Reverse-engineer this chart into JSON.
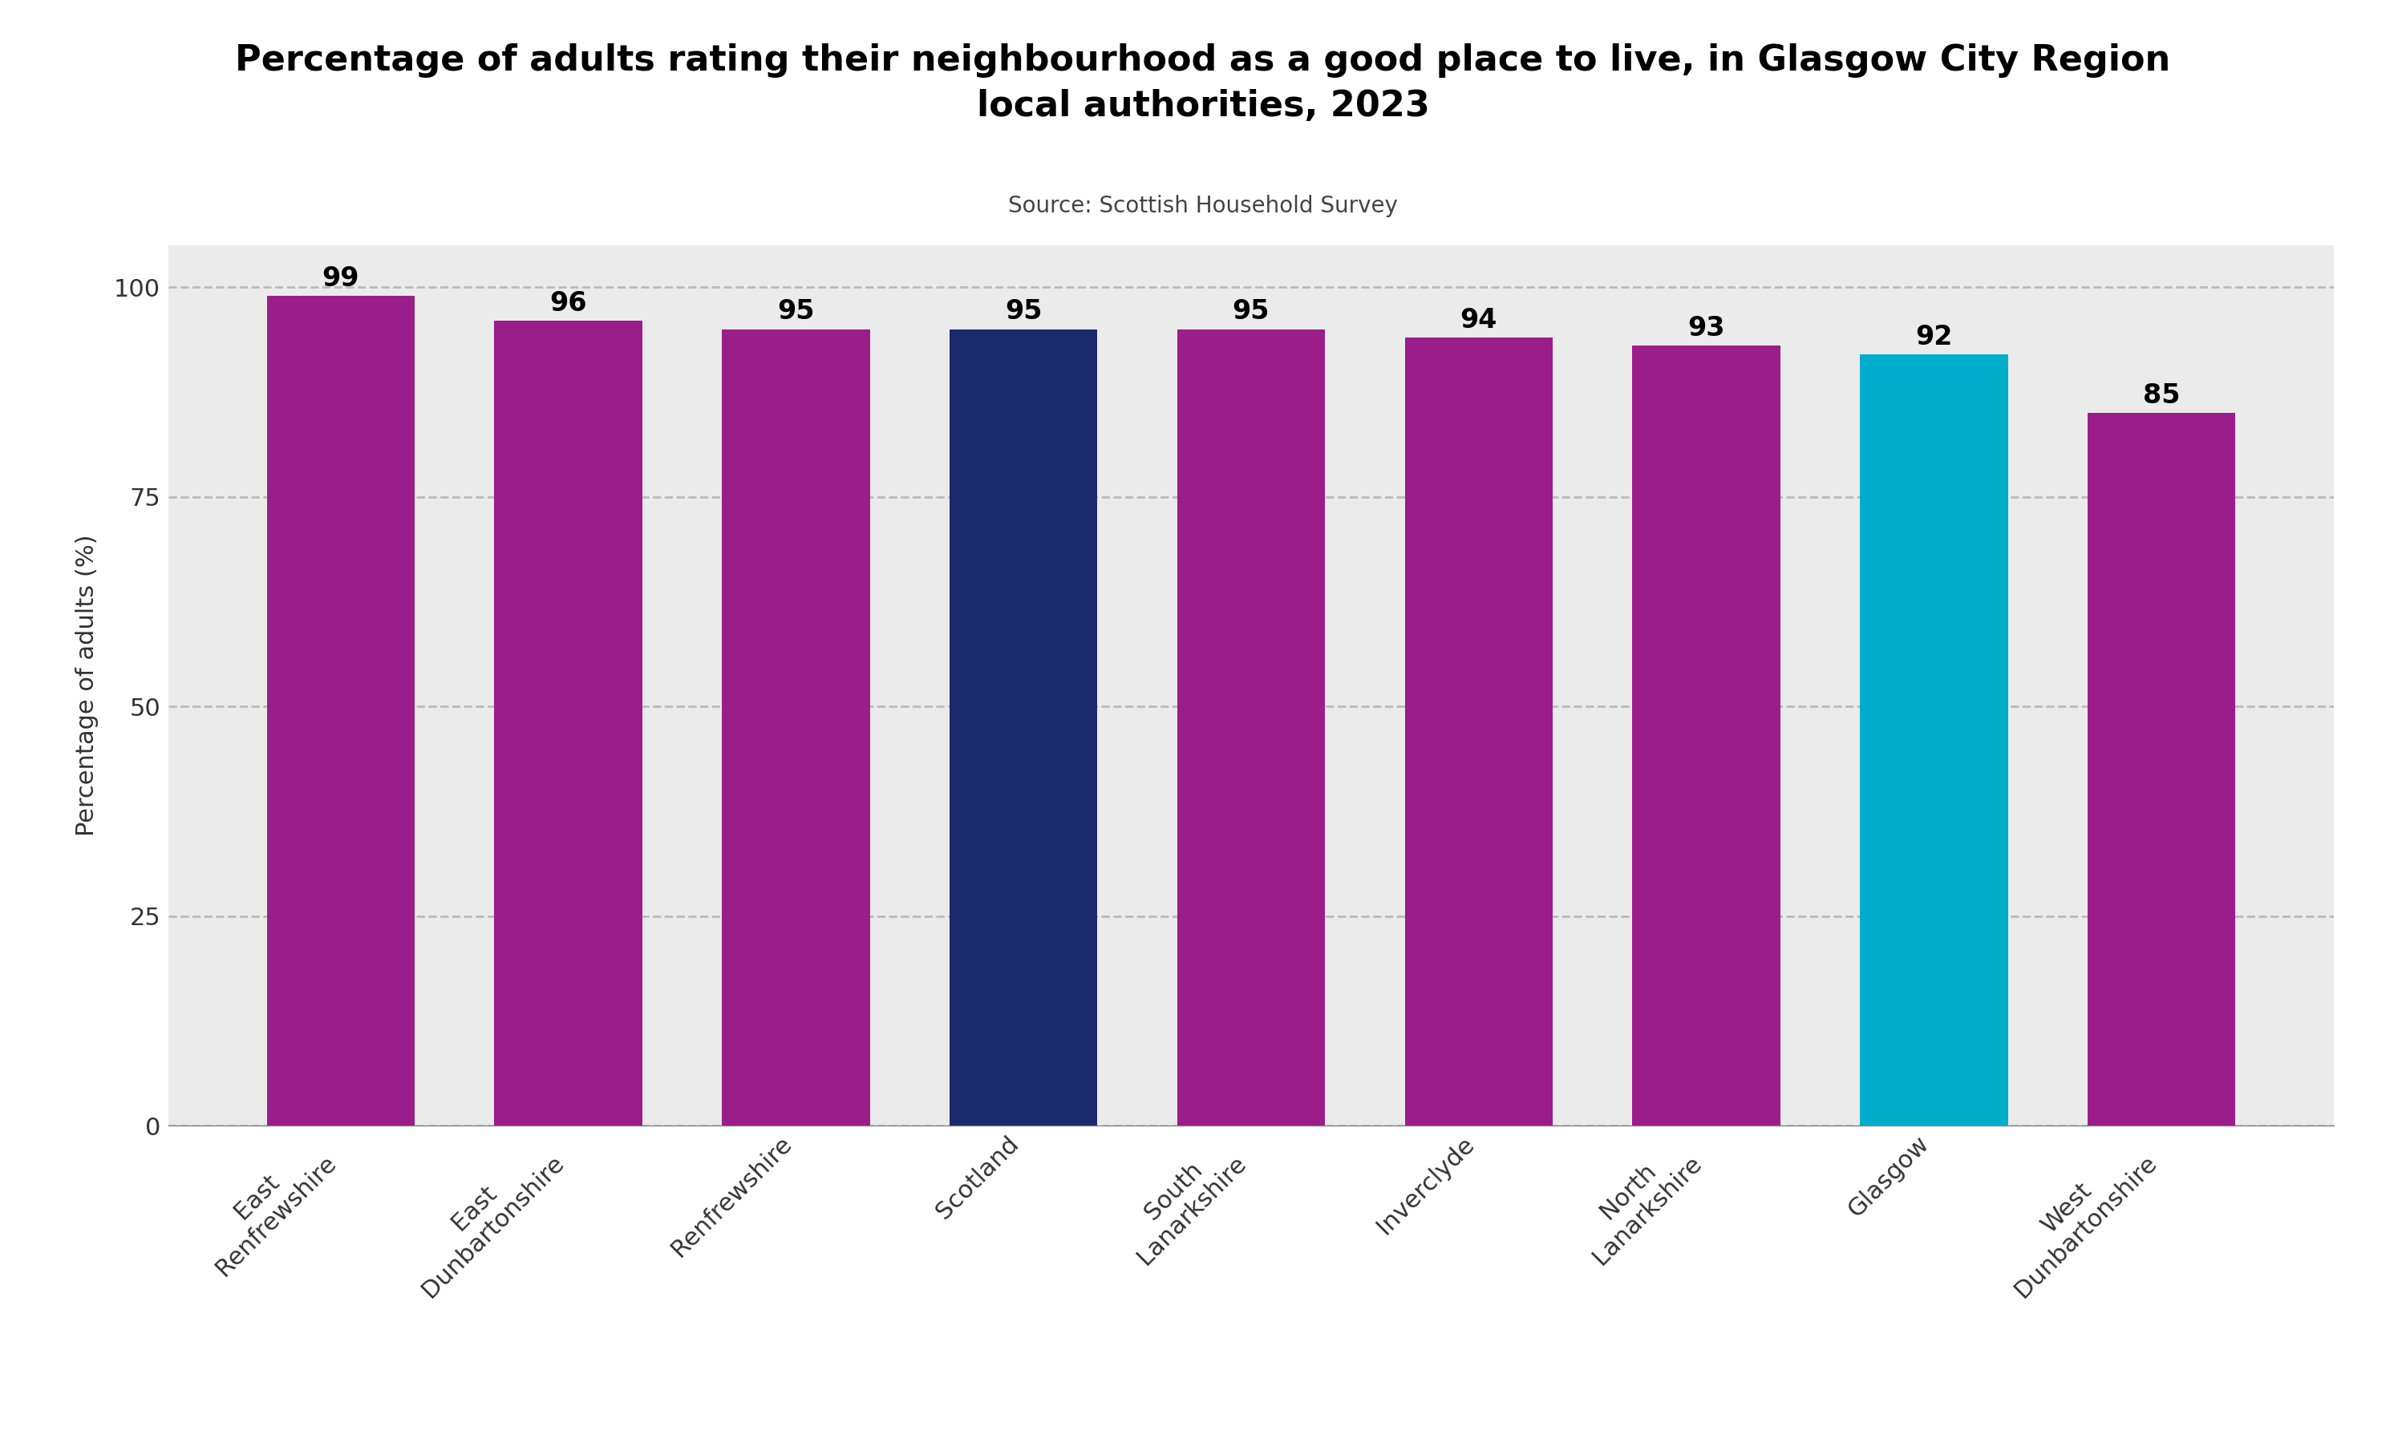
{
  "title": "Percentage of adults rating their neighbourhood as a good place to live, in Glasgow City Region\nlocal authorities, 2023",
  "subtitle": "Source: Scottish Household Survey",
  "categories": [
    "East\nRenfrewshire",
    "East\nDunbartonshire",
    "Renfrewshire",
    "Scotland",
    "South\nLanarkshire",
    "Inverclyde",
    "North\nLanarkshire",
    "Glasgow",
    "West\nDunbartonshire"
  ],
  "values": [
    99,
    96,
    95,
    95,
    95,
    94,
    93,
    92,
    85
  ],
  "bar_colors": [
    "#9B1D8A",
    "#9B1D8A",
    "#9B1D8A",
    "#1B2A6B",
    "#9B1D8A",
    "#9B1D8A",
    "#9B1D8A",
    "#00AECC",
    "#9B1D8A"
  ],
  "ylabel": "Percentage of adults (%)",
  "ylim": [
    0,
    105
  ],
  "yticks": [
    0,
    25,
    50,
    75,
    100
  ],
  "plot_bg_color": "#EBEBEB",
  "outer_bg_color": "#FFFFFF",
  "title_fontsize": 32,
  "subtitle_fontsize": 20,
  "tick_fontsize": 22,
  "bar_label_fontsize": 24,
  "ylabel_fontsize": 22,
  "grid_color": "#BBBBBB"
}
